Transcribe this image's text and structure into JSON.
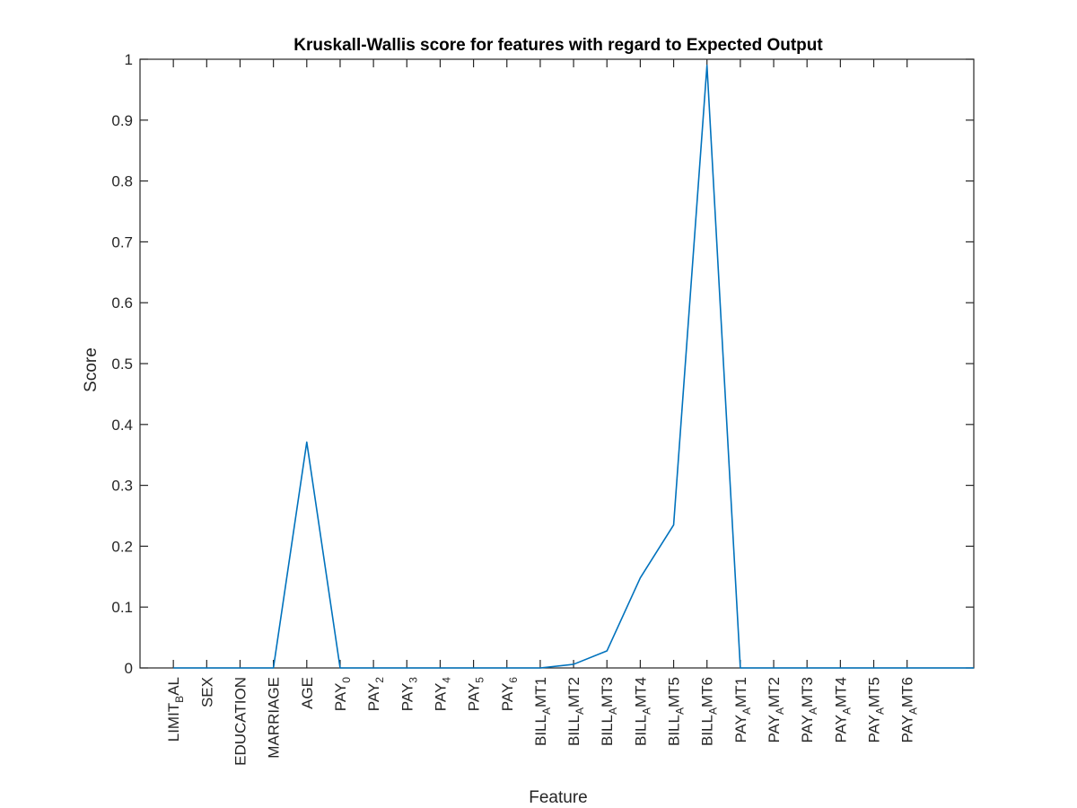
{
  "chart_data": {
    "type": "line",
    "title": "Kruskall-Wallis score for features with regard to Expected Output",
    "xlabel": "Feature",
    "ylabel": "Score",
    "ylim": [
      0,
      1
    ],
    "yticks": [
      "0",
      "0.1",
      "0.2",
      "0.3",
      "0.4",
      "0.5",
      "0.6",
      "0.7",
      "0.8",
      "0.9",
      "1"
    ],
    "grid": false,
    "line_color": "#0072BD",
    "categories": [
      {
        "main": "LIMIT",
        "sub": "B",
        "rest": "AL"
      },
      {
        "main": "SEX",
        "sub": "",
        "rest": ""
      },
      {
        "main": "EDUCATION",
        "sub": "",
        "rest": ""
      },
      {
        "main": "MARRIAGE",
        "sub": "",
        "rest": ""
      },
      {
        "main": "AGE",
        "sub": "",
        "rest": ""
      },
      {
        "main": "PAY",
        "sub": "0",
        "rest": ""
      },
      {
        "main": "PAY",
        "sub": "2",
        "rest": ""
      },
      {
        "main": "PAY",
        "sub": "3",
        "rest": ""
      },
      {
        "main": "PAY",
        "sub": "4",
        "rest": ""
      },
      {
        "main": "PAY",
        "sub": "5",
        "rest": ""
      },
      {
        "main": "PAY",
        "sub": "6",
        "rest": ""
      },
      {
        "main": "BILL",
        "sub": "A",
        "rest": "MT1"
      },
      {
        "main": "BILL",
        "sub": "A",
        "rest": "MT2"
      },
      {
        "main": "BILL",
        "sub": "A",
        "rest": "MT3"
      },
      {
        "main": "BILL",
        "sub": "A",
        "rest": "MT4"
      },
      {
        "main": "BILL",
        "sub": "A",
        "rest": "MT5"
      },
      {
        "main": "BILL",
        "sub": "A",
        "rest": "MT6"
      },
      {
        "main": "PAY",
        "sub": "A",
        "rest": "MT1"
      },
      {
        "main": "PAY",
        "sub": "A",
        "rest": "MT2"
      },
      {
        "main": "PAY",
        "sub": "A",
        "rest": "MT3"
      },
      {
        "main": "PAY",
        "sub": "A",
        "rest": "MT4"
      },
      {
        "main": "PAY",
        "sub": "A",
        "rest": "MT5"
      },
      {
        "main": "PAY",
        "sub": "A",
        "rest": "MT6"
      }
    ],
    "x": [
      1,
      2,
      3,
      4,
      5,
      6,
      7,
      8,
      9,
      10,
      11,
      12,
      13,
      14,
      15,
      16,
      17,
      18,
      19,
      20,
      21,
      22,
      23,
      24,
      25
    ],
    "xlim": [
      0,
      25
    ],
    "values": [
      0,
      0,
      0,
      0,
      0.371,
      0,
      0,
      0,
      0,
      0,
      0,
      0,
      0.006,
      0.028,
      0.148,
      0.235,
      0.99,
      0,
      0,
      0,
      0,
      0,
      0,
      0,
      0
    ]
  }
}
